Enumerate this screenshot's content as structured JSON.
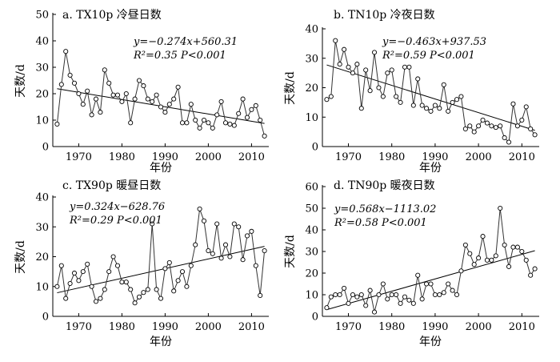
{
  "chart_data": [
    {
      "id": "a",
      "type": "line",
      "title": "a. TX10p 冷昼日数",
      "ylabel": "天数/d",
      "xlabel": "年份",
      "xlim": [
        1964,
        2014
      ],
      "ylim": [
        0,
        50
      ],
      "xticks": [
        1970,
        1980,
        1990,
        2000,
        2010
      ],
      "yticks": [
        0,
        10,
        20,
        30,
        40,
        50
      ],
      "equation": "y=−0.274x+560.31",
      "stats": "R²=0.35 P<0.001",
      "trend": {
        "slope": -0.274,
        "intercept": 560.31
      },
      "x": [
        1965,
        1966,
        1967,
        1968,
        1969,
        1970,
        1971,
        1972,
        1973,
        1974,
        1975,
        1976,
        1977,
        1978,
        1979,
        1980,
        1981,
        1982,
        1983,
        1984,
        1985,
        1986,
        1987,
        1988,
        1989,
        1990,
        1991,
        1992,
        1993,
        1994,
        1995,
        1996,
        1997,
        1998,
        1999,
        2000,
        2001,
        2002,
        2003,
        2004,
        2005,
        2006,
        2007,
        2008,
        2009,
        2010,
        2011,
        2012,
        2013
      ],
      "y": [
        8.5,
        23.5,
        36,
        27,
        24,
        20,
        16,
        21,
        12,
        18,
        13,
        29,
        24,
        19.5,
        19.5,
        17,
        20,
        9,
        18,
        25,
        23,
        18,
        17,
        19.5,
        15,
        13,
        16,
        18,
        22.5,
        9,
        9,
        16,
        10,
        7,
        10,
        9,
        7,
        12,
        17,
        9,
        8.5,
        8,
        12.5,
        18,
        11,
        14,
        15.5,
        10,
        4
      ]
    },
    {
      "id": "b",
      "type": "line",
      "title": "b. TN10p 冷夜日数",
      "ylabel": "天数/d",
      "xlabel": "年份",
      "xlim": [
        1964,
        2014
      ],
      "ylim": [
        0,
        40
      ],
      "xticks": [
        1970,
        1980,
        1990,
        2000,
        2010
      ],
      "yticks": [
        0,
        10,
        20,
        30,
        40
      ],
      "equation": "y=−0.463x+937.53",
      "stats": "R²=0.59 P<0.001",
      "trend": {
        "slope": -0.463,
        "intercept": 937.53
      },
      "x": [
        1965,
        1966,
        1967,
        1968,
        1969,
        1970,
        1971,
        1972,
        1973,
        1974,
        1975,
        1976,
        1977,
        1978,
        1979,
        1980,
        1981,
        1982,
        1983,
        1984,
        1985,
        1986,
        1987,
        1988,
        1989,
        1990,
        1991,
        1992,
        1993,
        1994,
        1995,
        1996,
        1997,
        1998,
        1999,
        2000,
        2001,
        2002,
        2003,
        2004,
        2005,
        2006,
        2007,
        2008,
        2009,
        2010,
        2011,
        2012,
        2013
      ],
      "y": [
        16,
        17,
        36,
        28,
        33,
        27,
        25,
        28,
        13,
        26,
        19,
        32,
        20,
        17,
        25,
        26,
        17,
        15,
        27,
        27,
        14,
        23,
        14,
        13,
        12,
        14,
        13,
        21,
        12,
        15,
        16,
        17,
        6,
        7,
        5,
        7,
        9,
        8,
        7,
        6.5,
        7,
        3,
        1.5,
        14.5,
        7,
        9,
        13.5,
        6,
        4
      ]
    },
    {
      "id": "c",
      "type": "line",
      "title": "c. TX90p 暖昼日数",
      "ylabel": "天数/d",
      "xlabel": "年份",
      "xlim": [
        1964,
        2014
      ],
      "ylim": [
        0,
        40
      ],
      "xticks": [
        1970,
        1980,
        1990,
        2000,
        2010
      ],
      "yticks": [
        0,
        10,
        20,
        30,
        40
      ],
      "equation": "y=0.324x−628.76",
      "stats": "R²=0.29 P<0.001",
      "trend": {
        "slope": 0.324,
        "intercept": -628.76
      },
      "x": [
        1965,
        1966,
        1967,
        1968,
        1969,
        1970,
        1971,
        1972,
        1973,
        1974,
        1975,
        1976,
        1977,
        1978,
        1979,
        1980,
        1981,
        1982,
        1983,
        1984,
        1985,
        1986,
        1987,
        1988,
        1989,
        1990,
        1991,
        1992,
        1993,
        1994,
        1995,
        1996,
        1997,
        1998,
        1999,
        2000,
        2001,
        2002,
        2003,
        2004,
        2005,
        2006,
        2007,
        2008,
        2009,
        2010,
        2011,
        2012,
        2013
      ],
      "y": [
        10,
        17,
        6,
        11,
        14.5,
        12,
        15,
        17.5,
        10,
        5,
        6,
        9,
        15,
        20,
        17,
        11.5,
        11.5,
        9,
        4.5,
        6.5,
        8,
        9,
        31,
        9,
        6,
        16,
        18,
        8.5,
        12,
        15,
        10,
        17,
        24,
        36,
        32,
        22,
        21,
        31,
        19.5,
        24,
        20,
        31,
        30,
        19,
        27,
        28.5,
        17,
        7,
        22
      ]
    },
    {
      "id": "d",
      "type": "line",
      "title": "d. TN90p 暖夜日数",
      "ylabel": "天数/d",
      "xlabel": "年份",
      "xlim": [
        1964,
        2014
      ],
      "ylim": [
        0,
        60
      ],
      "xticks": [
        1970,
        1980,
        1990,
        2000,
        2010
      ],
      "yticks": [
        0,
        10,
        20,
        30,
        40,
        50,
        60
      ],
      "equation": "y=0.568x−1113.02",
      "stats": "R²=0.58 P<0.001",
      "trend": {
        "slope": 0.568,
        "intercept": -1113.02
      },
      "x": [
        1965,
        1966,
        1967,
        1968,
        1969,
        1970,
        1971,
        1972,
        1973,
        1974,
        1975,
        1976,
        1977,
        1978,
        1979,
        1980,
        1981,
        1982,
        1983,
        1984,
        1985,
        1986,
        1987,
        1988,
        1989,
        1990,
        1991,
        1992,
        1993,
        1994,
        1995,
        1996,
        1997,
        1998,
        1999,
        2000,
        2001,
        2002,
        2003,
        2004,
        2005,
        2006,
        2007,
        2008,
        2009,
        2010,
        2011,
        2012,
        2013
      ],
      "y": [
        4,
        9,
        10,
        10,
        13,
        6,
        10,
        9,
        10,
        5,
        12,
        2,
        10,
        15,
        8,
        10,
        10,
        6,
        9,
        7.5,
        6,
        19,
        8,
        15,
        15,
        10,
        10,
        11,
        15,
        12,
        10,
        21,
        33,
        29,
        24,
        27,
        37,
        26,
        26,
        28,
        50,
        33,
        23,
        32,
        32,
        30,
        26,
        19,
        22
      ]
    }
  ]
}
